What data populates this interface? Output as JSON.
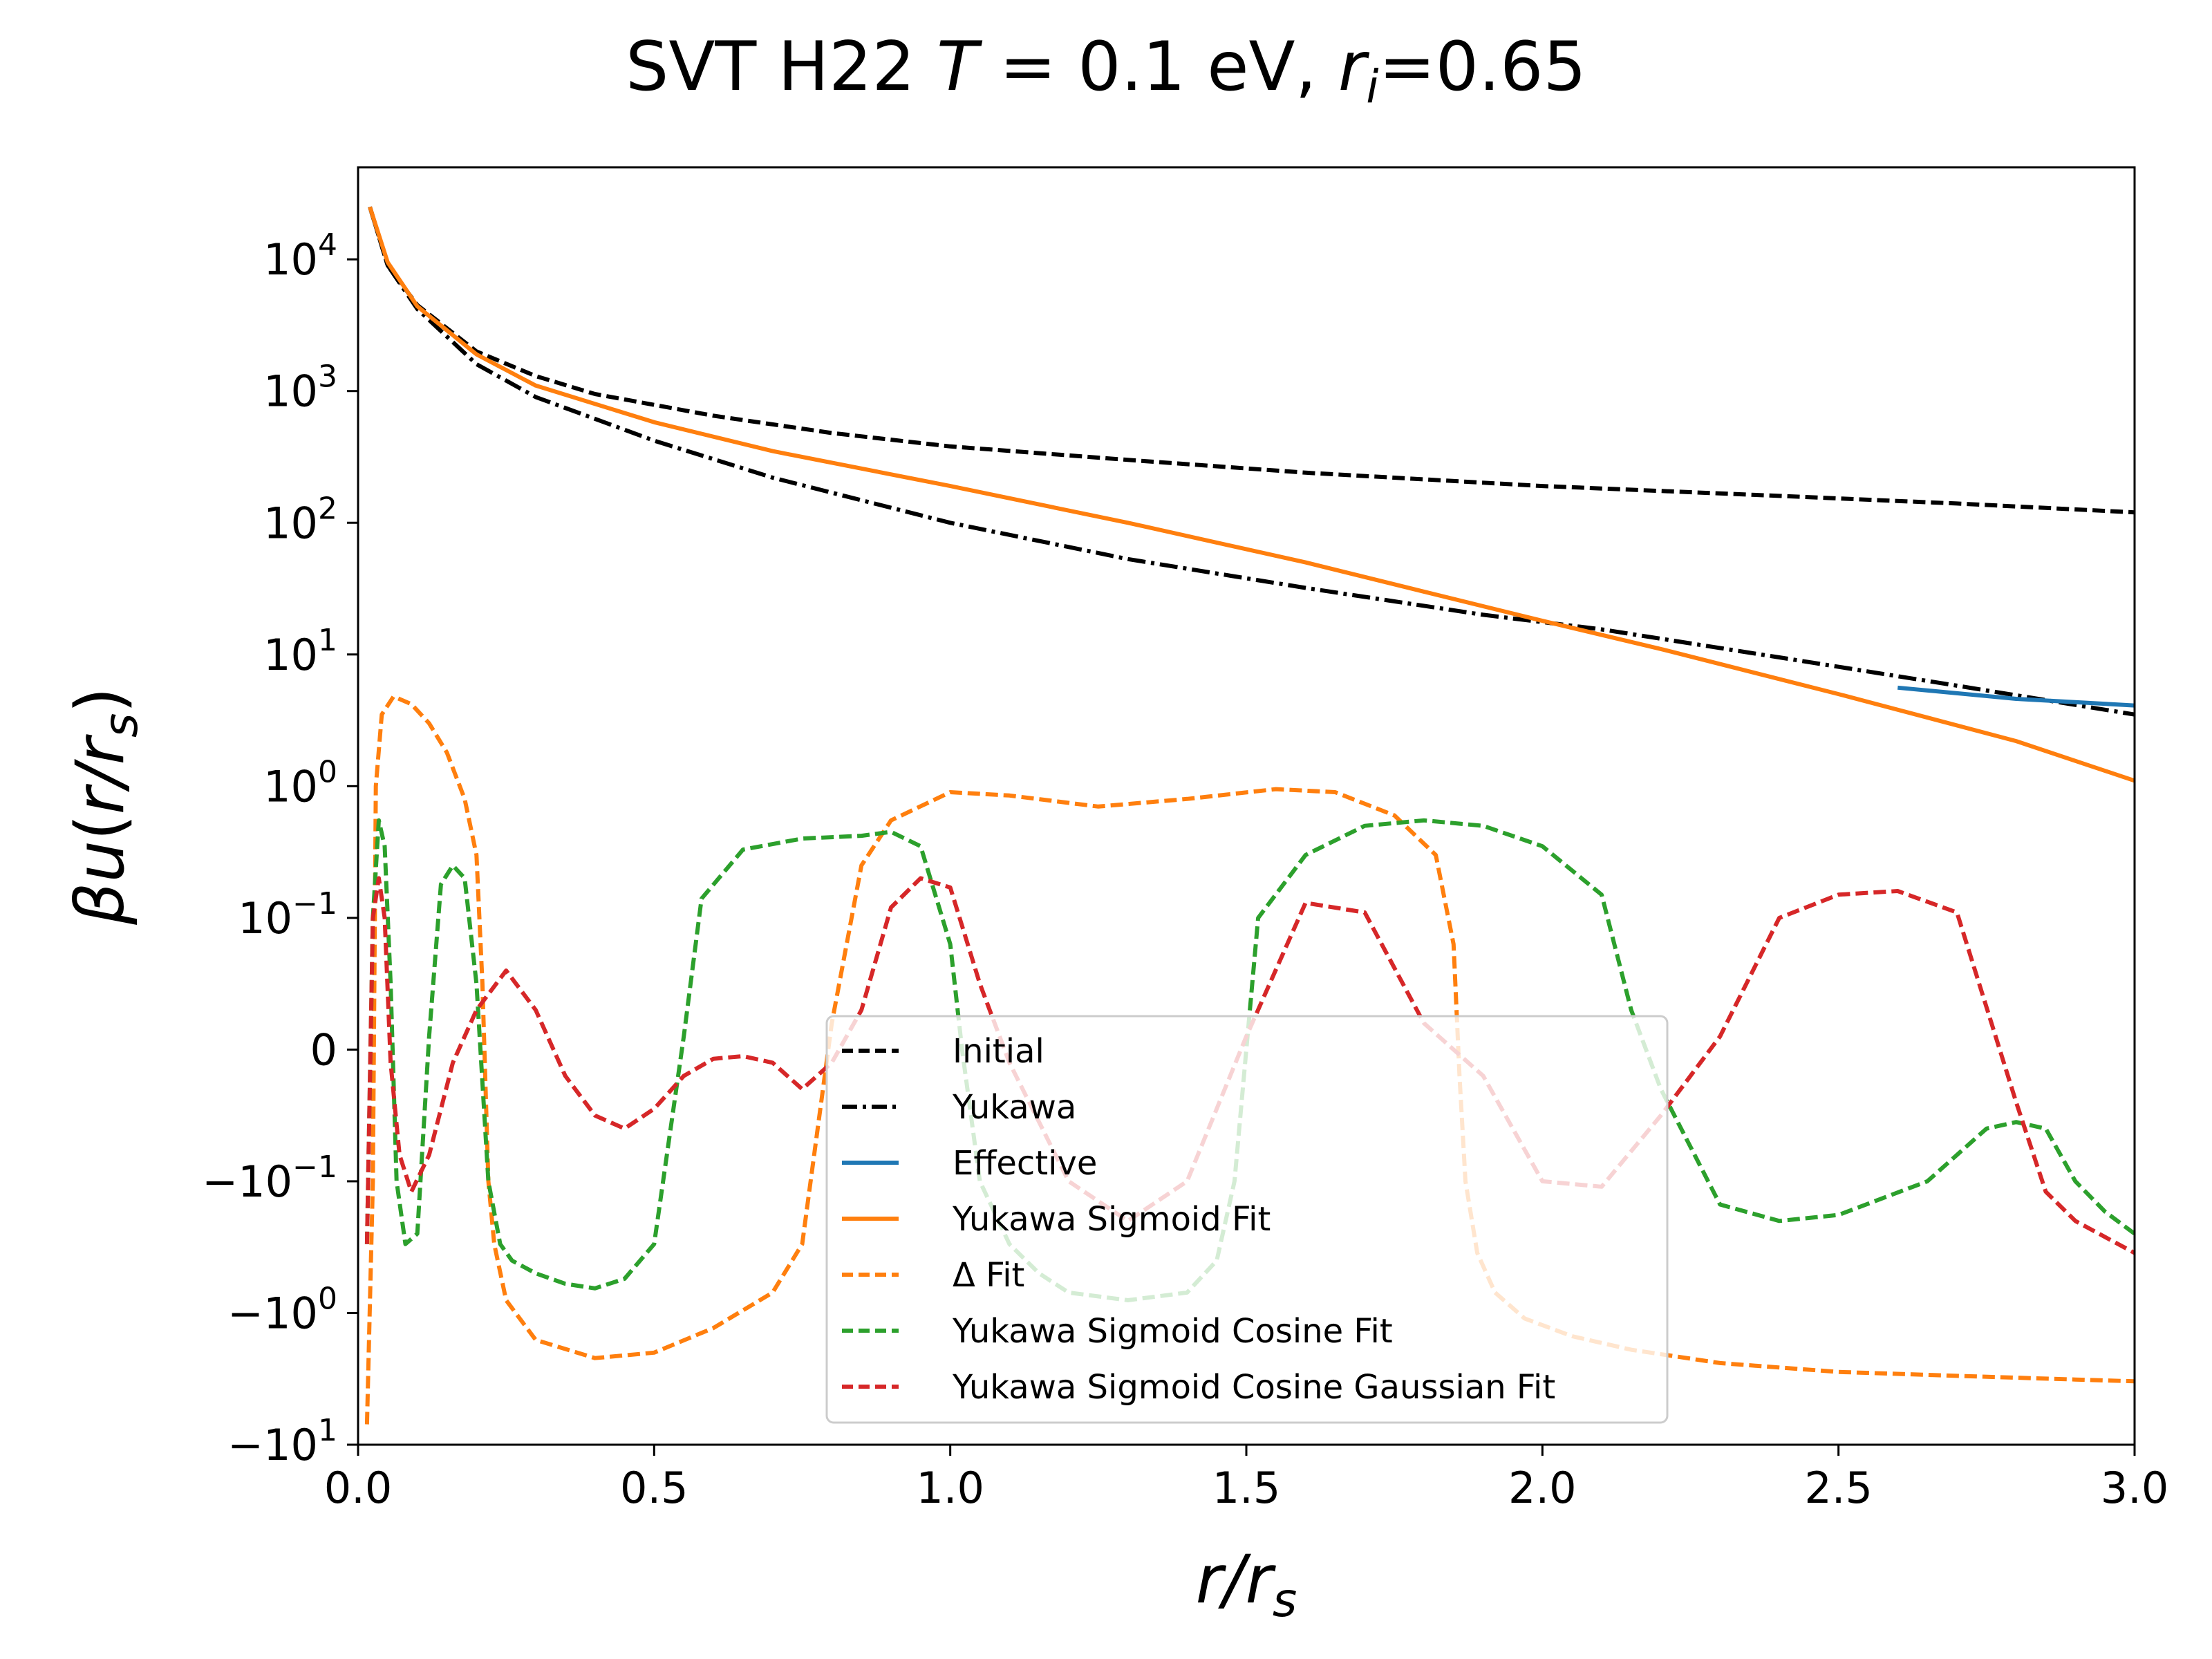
{
  "chart_data": {
    "type": "line",
    "title": "SVT H22 T = 0.1 eV, r_i=0.65",
    "title_parts": {
      "prefix": "SVT H22 ",
      "T_symbol": "T",
      "T_value": " = 0.1 eV, ",
      "r_symbol": "r",
      "r_subscript": "i",
      "r_value": "=0.65"
    },
    "xlabel": "r/r_s",
    "ylabel": "βu(r/r_s)",
    "xlim": [
      0.0,
      3.0
    ],
    "ylim": [
      -10,
      50000
    ],
    "yscale": "symlog",
    "symlog_linthresh": 0.1,
    "grid": false,
    "legend_position": "lower-center",
    "x_ticks": [
      "0.0",
      "0.5",
      "1.0",
      "1.5",
      "2.0",
      "2.5",
      "3.0"
    ],
    "x_tick_values": [
      0.0,
      0.5,
      1.0,
      1.5,
      2.0,
      2.5,
      3.0
    ],
    "y_ticks": [
      {
        "value": 10000,
        "base": "10",
        "exp": "4",
        "sign": ""
      },
      {
        "value": 1000,
        "base": "10",
        "exp": "3",
        "sign": ""
      },
      {
        "value": 100,
        "base": "10",
        "exp": "2",
        "sign": ""
      },
      {
        "value": 10,
        "base": "10",
        "exp": "1",
        "sign": ""
      },
      {
        "value": 1,
        "base": "10",
        "exp": "0",
        "sign": ""
      },
      {
        "value": 0.1,
        "base": "10",
        "exp": "−1",
        "sign": ""
      },
      {
        "value": 0,
        "base": "0",
        "exp": "",
        "sign": ""
      },
      {
        "value": -0.1,
        "base": "10",
        "exp": "−1",
        "sign": "−"
      },
      {
        "value": -1,
        "base": "10",
        "exp": "0",
        "sign": "−"
      },
      {
        "value": -10,
        "base": "10",
        "exp": "1",
        "sign": "−"
      }
    ],
    "series": [
      {
        "name": "Initial",
        "color": "#000000",
        "dash": "dashed",
        "x": [
          0.02,
          0.05,
          0.1,
          0.2,
          0.3,
          0.4,
          0.6,
          0.8,
          1.0,
          1.3,
          1.6,
          2.0,
          2.4,
          2.7,
          3.0
        ],
        "y": [
          25000,
          9000,
          4500,
          2000,
          1300,
          950,
          650,
          480,
          380,
          300,
          240,
          190,
          160,
          140,
          120
        ]
      },
      {
        "name": "Yukawa",
        "color": "#000000",
        "dash": "dashdot",
        "x": [
          0.02,
          0.05,
          0.1,
          0.2,
          0.3,
          0.5,
          0.7,
          1.0,
          1.3,
          1.6,
          1.9,
          2.1,
          2.4,
          2.7,
          3.0
        ],
        "y": [
          25000,
          9000,
          4200,
          1600,
          900,
          420,
          220,
          100,
          53,
          32,
          20,
          15.5,
          9.5,
          5.8,
          3.5
        ]
      },
      {
        "name": "Effective",
        "color": "#1f77b4",
        "dash": "solid",
        "x": [
          2.6,
          2.8,
          3.0
        ],
        "y": [
          5.6,
          4.6,
          4.1
        ]
      },
      {
        "name": "Yukawa Sigmoid Fit",
        "color": "#ff7f0e",
        "dash": "solid",
        "x": [
          0.02,
          0.05,
          0.1,
          0.2,
          0.3,
          0.5,
          0.7,
          1.0,
          1.3,
          1.6,
          1.8,
          2.0,
          2.2,
          2.5,
          2.8,
          3.0
        ],
        "y": [
          25000,
          9500,
          4400,
          1900,
          1100,
          580,
          350,
          190,
          100,
          50,
          30,
          18,
          11,
          5,
          2.2,
          1.1
        ]
      },
      {
        "name": "Δ Fit",
        "color": "#ff7f0e",
        "dash": "dashed",
        "x": [
          0.015,
          0.025,
          0.03,
          0.04,
          0.06,
          0.09,
          0.12,
          0.15,
          0.18,
          0.2,
          0.21,
          0.22,
          0.23,
          0.25,
          0.3,
          0.4,
          0.5,
          0.6,
          0.7,
          0.75,
          0.8,
          0.85,
          0.9,
          1.0,
          1.1,
          1.25,
          1.4,
          1.55,
          1.65,
          1.75,
          1.82,
          1.85,
          1.86,
          1.87,
          1.89,
          1.92,
          1.97,
          2.05,
          2.15,
          2.3,
          2.5,
          2.7,
          2.9,
          3.0
        ],
        "y": [
          -7,
          -0.1,
          1,
          3.5,
          4.8,
          4.2,
          3.0,
          1.8,
          0.8,
          0.3,
          0.05,
          -0.1,
          -0.3,
          -0.8,
          -1.6,
          -2.2,
          -2.0,
          -1.3,
          -0.7,
          -0.3,
          0.02,
          0.25,
          0.55,
          0.9,
          0.85,
          0.7,
          0.8,
          0.95,
          0.9,
          0.6,
          0.3,
          0.08,
          -0.02,
          -0.1,
          -0.35,
          -0.7,
          -1.1,
          -1.5,
          -1.9,
          -2.4,
          -2.8,
          -3.0,
          -3.2,
          -3.3
        ]
      },
      {
        "name": "Yukawa Sigmoid Cosine Fit",
        "color": "#2ca02c",
        "dash": "dashed",
        "x": [
          0.015,
          0.025,
          0.035,
          0.045,
          0.055,
          0.065,
          0.08,
          0.1,
          0.12,
          0.14,
          0.16,
          0.18,
          0.2,
          0.22,
          0.24,
          0.26,
          0.3,
          0.35,
          0.4,
          0.45,
          0.5,
          0.55,
          0.58,
          0.65,
          0.75,
          0.85,
          0.9,
          0.95,
          1.0,
          1.02,
          1.05,
          1.1,
          1.15,
          1.2,
          1.3,
          1.4,
          1.45,
          1.48,
          1.52,
          1.6,
          1.7,
          1.8,
          1.9,
          2.0,
          2.1,
          2.15,
          2.2,
          2.3,
          2.4,
          2.5,
          2.65,
          2.75,
          2.8,
          2.85,
          2.9,
          2.95,
          3.0
        ],
        "y": [
          -0.3,
          0.1,
          0.55,
          0.35,
          0.05,
          -0.1,
          -0.3,
          -0.25,
          0.01,
          0.18,
          0.25,
          0.2,
          0.05,
          -0.1,
          -0.3,
          -0.4,
          -0.5,
          -0.6,
          -0.65,
          -0.55,
          -0.3,
          0.01,
          0.14,
          0.33,
          0.4,
          0.42,
          0.45,
          0.35,
          0.08,
          0.0,
          -0.1,
          -0.3,
          -0.5,
          -0.7,
          -0.8,
          -0.7,
          -0.4,
          -0.1,
          0.1,
          0.3,
          0.5,
          0.55,
          0.5,
          0.35,
          0.15,
          0.03,
          -0.03,
          -0.15,
          -0.2,
          -0.18,
          -0.1,
          -0.06,
          -0.055,
          -0.06,
          -0.1,
          -0.17,
          -0.25
        ]
      },
      {
        "name": "Yukawa Sigmoid Cosine Gaussian Fit",
        "color": "#d62728",
        "dash": "dashed",
        "x": [
          0.015,
          0.025,
          0.035,
          0.045,
          0.055,
          0.07,
          0.09,
          0.12,
          0.16,
          0.2,
          0.25,
          0.3,
          0.35,
          0.4,
          0.45,
          0.5,
          0.55,
          0.6,
          0.65,
          0.7,
          0.75,
          0.8,
          0.85,
          0.9,
          0.95,
          1.0,
          1.05,
          1.1,
          1.2,
          1.3,
          1.4,
          1.5,
          1.6,
          1.7,
          1.8,
          1.9,
          2.0,
          2.1,
          2.2,
          2.3,
          2.4,
          2.5,
          2.6,
          2.7,
          2.8,
          2.85,
          2.9,
          3.0
        ],
        "y": [
          -0.3,
          0.1,
          0.2,
          0.1,
          -0.01,
          -0.08,
          -0.12,
          -0.08,
          -0.01,
          0.03,
          0.06,
          0.03,
          -0.02,
          -0.05,
          -0.06,
          -0.045,
          -0.02,
          -0.007,
          -0.005,
          -0.01,
          -0.03,
          -0.01,
          0.03,
          0.12,
          0.2,
          0.17,
          0.05,
          -0.01,
          -0.1,
          -0.2,
          -0.1,
          0.01,
          0.13,
          0.11,
          0.02,
          -0.02,
          -0.1,
          -0.11,
          -0.05,
          0.01,
          0.1,
          0.15,
          0.16,
          0.11,
          -0.04,
          -0.12,
          -0.2,
          -0.35
        ]
      }
    ]
  }
}
